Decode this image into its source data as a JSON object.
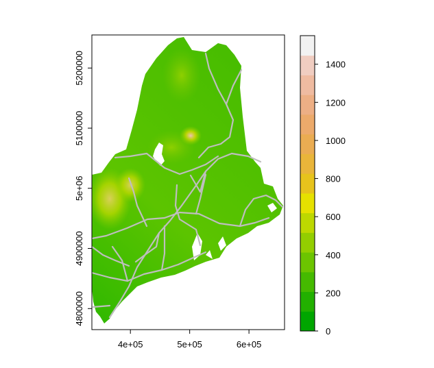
{
  "map": {
    "x_axis": {
      "ticks": [
        {
          "value": 400000,
          "label": "4e+05"
        },
        {
          "value": 500000,
          "label": "5e+05"
        },
        {
          "value": 600000,
          "label": "6e+05"
        }
      ],
      "range": [
        335000,
        660000
      ]
    },
    "y_axis": {
      "ticks": [
        {
          "value": 4800000,
          "label": "4800000"
        },
        {
          "value": 4900000,
          "label": "4900000"
        },
        {
          "value": 5000000,
          "label": "5e+06"
        },
        {
          "value": 5100000,
          "label": "5100000"
        },
        {
          "value": 5200000,
          "label": "5200000"
        }
      ],
      "range": [
        4765000,
        5255000
      ]
    },
    "raster": {
      "description_colors": [
        "#00a600",
        "#3cbc00",
        "#8bd000",
        "#e6e600",
        "#e9bd3a",
        "#ecb176",
        "#efc2b3",
        "#f2f2f2"
      ],
      "road_color": "#bebebe"
    },
    "legend": {
      "ticks": [
        {
          "value": 0,
          "label": "0"
        },
        {
          "value": 200,
          "label": "200"
        },
        {
          "value": 400,
          "label": "400"
        },
        {
          "value": 600,
          "label": "600"
        },
        {
          "value": 800,
          "label": "800"
        },
        {
          "value": 1000,
          "label": "1000"
        },
        {
          "value": 1200,
          "label": "1200"
        },
        {
          "value": 1400,
          "label": "1400"
        }
      ],
      "range": [
        0,
        1550
      ],
      "colors": [
        "#00a600",
        "#22b000",
        "#45ba00",
        "#6cc400",
        "#93ce00",
        "#bdd800",
        "#e6e100",
        "#e7c31c",
        "#e9b53a",
        "#eaac52",
        "#ecaa6b",
        "#edaf85",
        "#efbba1",
        "#f0cdc1",
        "#f2f2f2"
      ]
    }
  }
}
